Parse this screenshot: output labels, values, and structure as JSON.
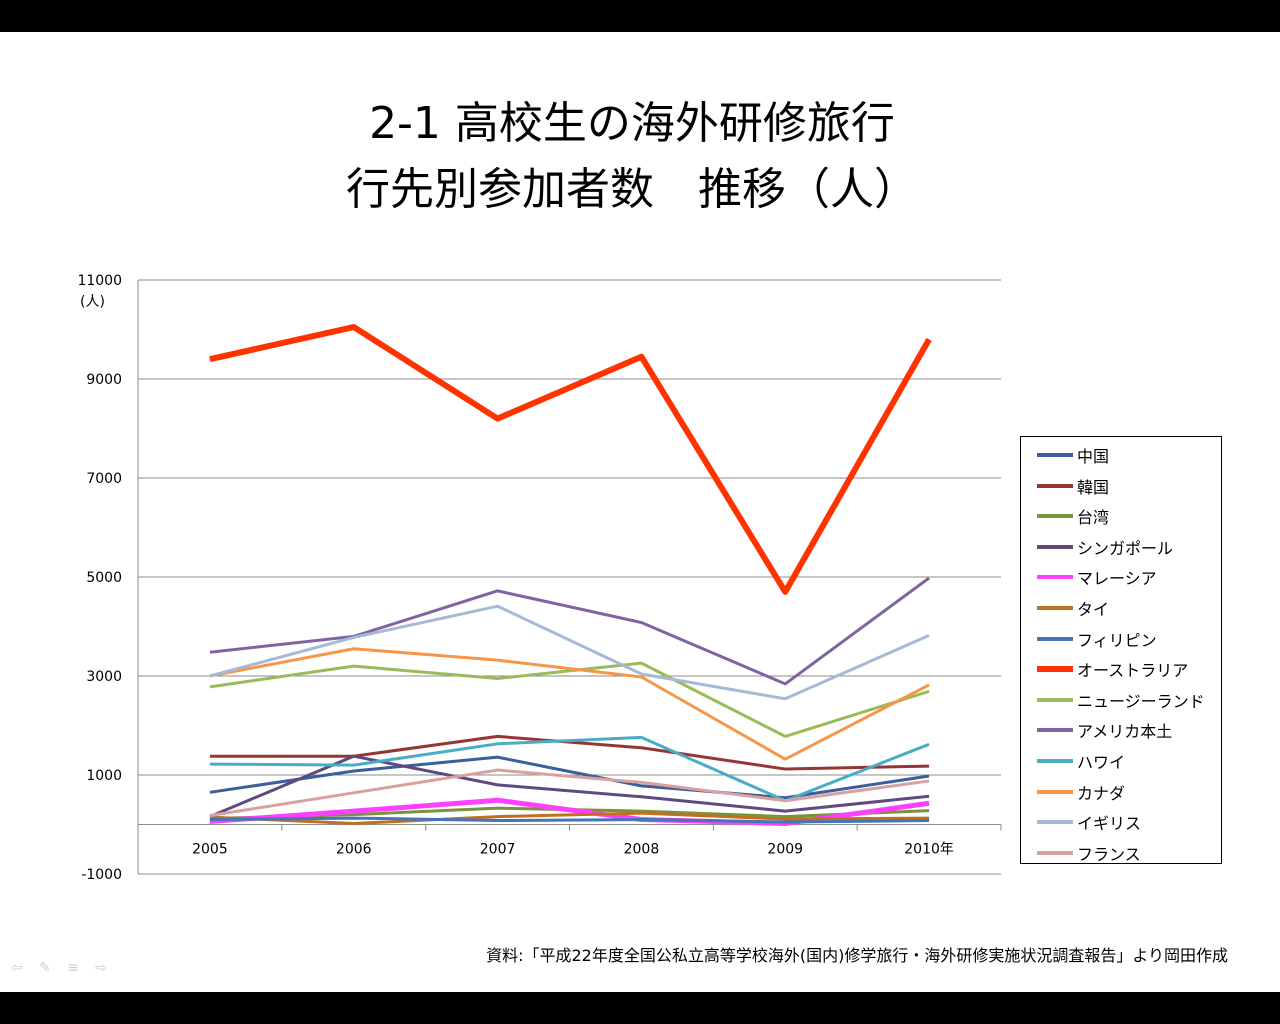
{
  "slide": {
    "title_line1": "2-1 高校生の海外研修旅行",
    "title_line2": "行先別参加者数　推移（人）",
    "source_note": "資料:「平成22年度全国公私立高等学校海外(国内)修学旅行・海外研修実施状況調査報告」より岡田作成"
  },
  "nav": {
    "prev_icon": "arrow-left-icon",
    "pen_icon": "pen-icon",
    "menu_icon": "menu-icon",
    "next_icon": "arrow-right-icon"
  },
  "chart_data": {
    "type": "line",
    "title": "",
    "ylabel": "(人)",
    "xlabel": "",
    "categories": [
      "2005",
      "2006",
      "2007",
      "2008",
      "2009",
      "2010年"
    ],
    "ylim": [
      -1000,
      11000
    ],
    "yticks": [
      "11000",
      "9000",
      "7000",
      "5000",
      "3000",
      "1000",
      "-1000"
    ],
    "grid": true,
    "legend_position": "right",
    "series": [
      {
        "name": "中国",
        "color": "#3A5F9A",
        "values": [
          650,
          1080,
          1360,
          780,
          540,
          980
        ]
      },
      {
        "name": "韓国",
        "color": "#963634",
        "values": [
          1380,
          1380,
          1780,
          1550,
          1120,
          1180
        ]
      },
      {
        "name": "台湾",
        "color": "#77933C",
        "values": [
          120,
          200,
          330,
          270,
          160,
          280
        ]
      },
      {
        "name": "シンガポール",
        "color": "#5F4A80",
        "values": [
          160,
          1380,
          800,
          560,
          270,
          570
        ]
      },
      {
        "name": "マレーシア",
        "color": "#FF3FFF",
        "values": [
          60,
          270,
          490,
          100,
          20,
          430
        ]
      },
      {
        "name": "タイ",
        "color": "#C0711F",
        "values": [
          150,
          20,
          160,
          230,
          110,
          130
        ]
      },
      {
        "name": "フィリピン",
        "color": "#4674B8",
        "values": [
          100,
          130,
          80,
          100,
          50,
          80
        ]
      },
      {
        "name": "オーストラリア",
        "color": "#FF3300",
        "values": [
          9400,
          10050,
          8200,
          9450,
          4700,
          9800
        ]
      },
      {
        "name": "ニュージーランド",
        "color": "#9BBB59",
        "values": [
          2780,
          3200,
          2950,
          3260,
          1780,
          2690
        ]
      },
      {
        "name": "アメリカ本土",
        "color": "#8064A2",
        "values": [
          3480,
          3800,
          4720,
          4080,
          2840,
          4980
        ]
      },
      {
        "name": "ハワイ",
        "color": "#4BACC6",
        "values": [
          1220,
          1200,
          1630,
          1760,
          480,
          1620
        ]
      },
      {
        "name": "カナダ",
        "color": "#F79646",
        "values": [
          3000,
          3550,
          3320,
          2980,
          1320,
          2820
        ]
      },
      {
        "name": "イギリス",
        "color": "#A6B9D6",
        "values": [
          3000,
          3780,
          4410,
          3040,
          2540,
          3820
        ]
      },
      {
        "name": "フランス",
        "color": "#D9A09E",
        "values": [
          180,
          640,
          1100,
          850,
          480,
          880
        ]
      }
    ]
  }
}
